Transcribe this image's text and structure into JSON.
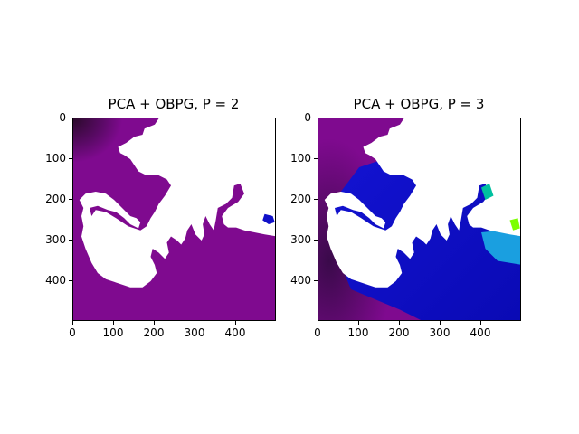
{
  "figure": {
    "panels": [
      {
        "title": "PCA + OBPG, P = 2",
        "x_ticks": [
          "0",
          "100",
          "200",
          "300",
          "400"
        ],
        "y_ticks": [
          "0",
          "100",
          "200",
          "300",
          "400"
        ]
      },
      {
        "title": "PCA + OBPG, P = 3",
        "x_ticks": [
          "0",
          "100",
          "200",
          "300",
          "400"
        ],
        "y_ticks": [
          "0",
          "100",
          "200",
          "300",
          "400"
        ]
      }
    ]
  },
  "chart_data": [
    {
      "type": "heatmap",
      "title": "PCA + OBPG, P = 2",
      "xlim": [
        0,
        500
      ],
      "ylim": [
        500,
        0
      ],
      "x_tick_values": [
        0,
        100,
        200,
        300,
        400
      ],
      "y_tick_values": [
        0,
        100,
        200,
        300,
        400
      ],
      "land_color": "#ffffff",
      "dominant_color": "#7f0a8f",
      "colors": [
        "#7f0a8f",
        "#3d0d3c",
        "#1010c8"
      ]
    },
    {
      "type": "heatmap",
      "title": "PCA + OBPG, P = 3",
      "xlim": [
        0,
        500
      ],
      "ylim": [
        500,
        0
      ],
      "x_tick_values": [
        0,
        100,
        200,
        300,
        400
      ],
      "y_tick_values": [
        0,
        100,
        200,
        300,
        400
      ],
      "land_color": "#ffffff",
      "colors": [
        "#7f0a8f",
        "#3a0a4a",
        "#1414d6",
        "#0a0ab4",
        "#1a9fe0",
        "#00c0a0",
        "#7cff00"
      ]
    }
  ]
}
